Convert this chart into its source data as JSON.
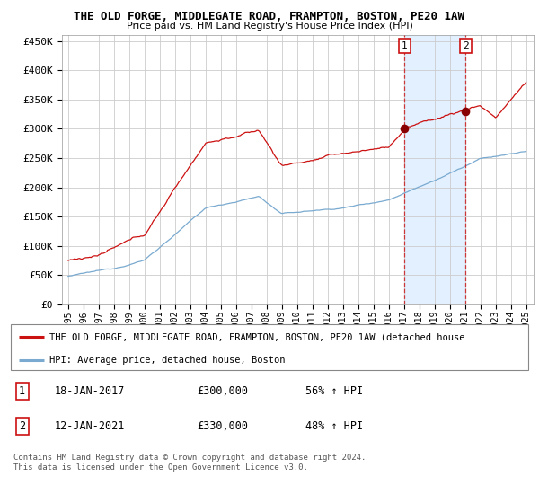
{
  "title": "THE OLD FORGE, MIDDLEGATE ROAD, FRAMPTON, BOSTON, PE20 1AW",
  "subtitle": "Price paid vs. HM Land Registry's House Price Index (HPI)",
  "ylabel_ticks": [
    "£0",
    "£50K",
    "£100K",
    "£150K",
    "£200K",
    "£250K",
    "£300K",
    "£350K",
    "£400K",
    "£450K"
  ],
  "ytick_values": [
    0,
    50000,
    100000,
    150000,
    200000,
    250000,
    300000,
    350000,
    400000,
    450000
  ],
  "ylim": [
    0,
    460000
  ],
  "sale1": {
    "date_num": 2017.05,
    "price": 300000,
    "label": "1"
  },
  "sale2": {
    "date_num": 2021.05,
    "price": 330000,
    "label": "2"
  },
  "legend_line1": "THE OLD FORGE, MIDDLEGATE ROAD, FRAMPTON, BOSTON, PE20 1AW (detached house",
  "legend_line2": "HPI: Average price, detached house, Boston",
  "table_row1": [
    "1",
    "18-JAN-2017",
    "£300,000",
    "56% ↑ HPI"
  ],
  "table_row2": [
    "2",
    "12-JAN-2021",
    "£330,000",
    "48% ↑ HPI"
  ],
  "footnote": "Contains HM Land Registry data © Crown copyright and database right 2024.\nThis data is licensed under the Open Government Licence v3.0.",
  "hpi_color": "#7aaad0",
  "price_color": "#cc1111",
  "shade_color": "#ddeeff",
  "grid_color": "#cccccc",
  "background_color": "#ffffff"
}
